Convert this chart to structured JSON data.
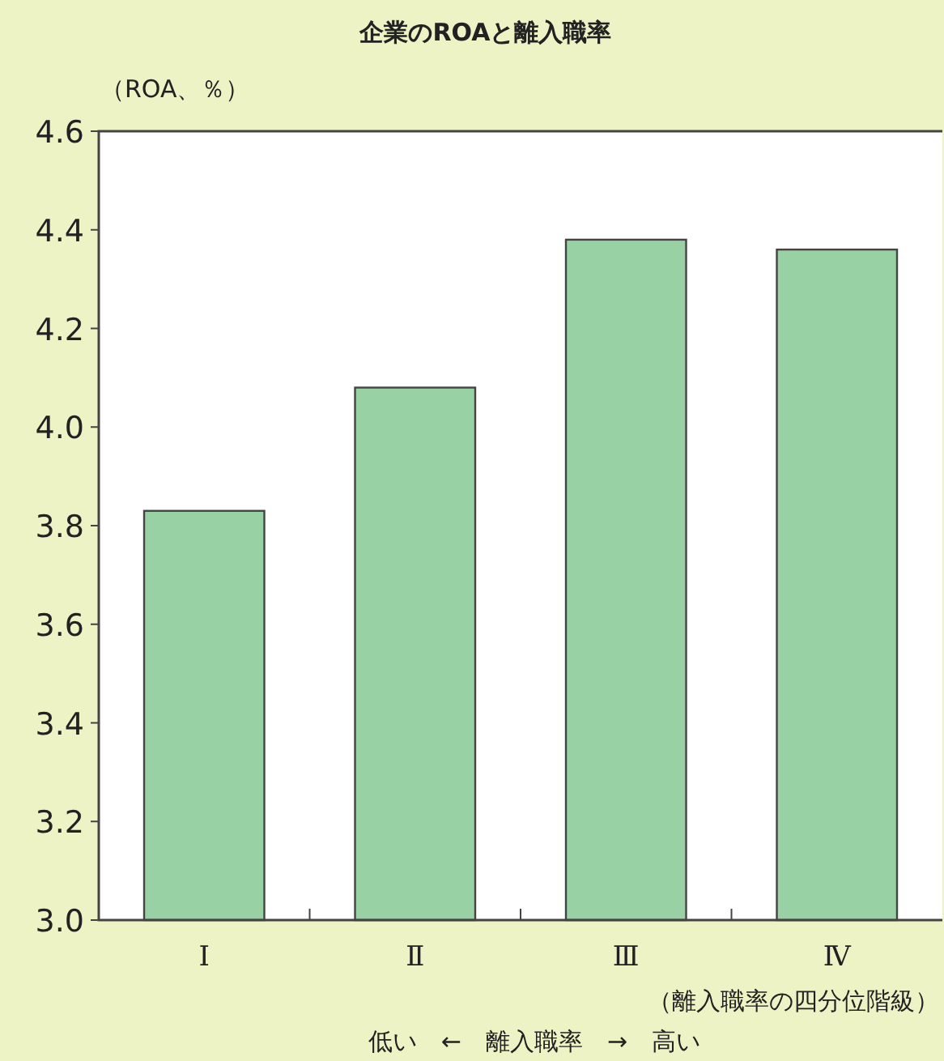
{
  "chart_data": {
    "type": "bar",
    "title": "企業のROAと離入職率",
    "ylabel": "（ROA、％）",
    "xlabel": "（離入職率の四分位階級）",
    "annotations": [
      "低い　←　離入職率　→　高い"
    ],
    "categories": [
      "Ⅰ",
      "Ⅱ",
      "Ⅲ",
      "Ⅳ"
    ],
    "values": [
      3.83,
      4.08,
      4.38,
      4.36
    ],
    "color": "#98d1a3",
    "ylim": [
      3.0,
      4.6
    ],
    "yticks": [
      {
        "value": 3.0,
        "label": "3.0"
      },
      {
        "value": 3.2,
        "label": "3.2"
      },
      {
        "value": 3.4,
        "label": "3.4"
      },
      {
        "value": 3.6,
        "label": "3.6"
      },
      {
        "value": 3.8,
        "label": "3.8"
      },
      {
        "value": 4.0,
        "label": "4.0"
      },
      {
        "value": 4.2,
        "label": "4.2"
      },
      {
        "value": 4.4,
        "label": "4.4"
      },
      {
        "value": 4.6,
        "label": "4.6"
      }
    ],
    "data_labels": false
  }
}
